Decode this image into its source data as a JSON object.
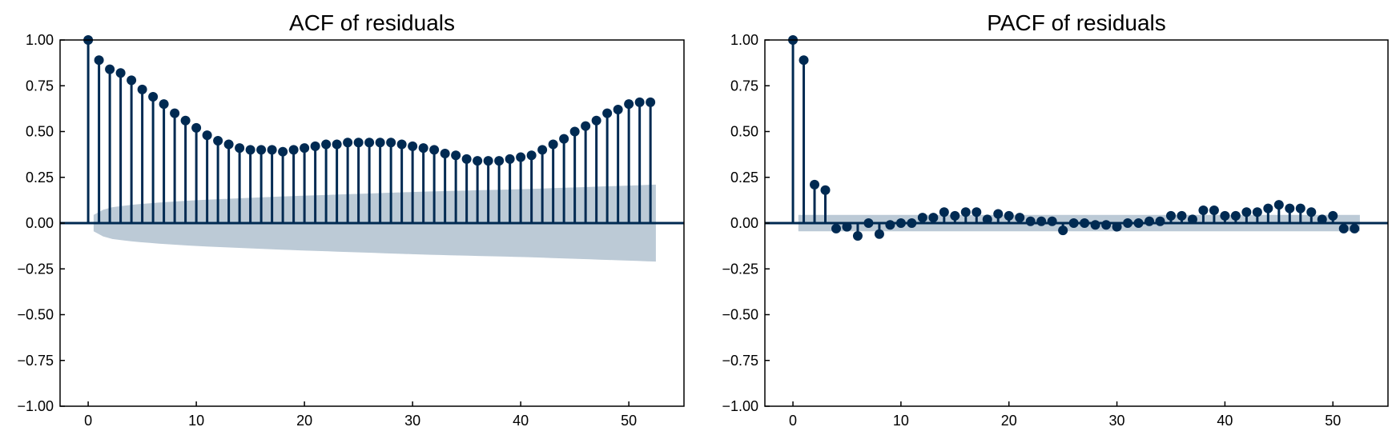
{
  "chart_data": [
    {
      "type": "stem",
      "title": "ACF of residuals",
      "xlim": [
        -2.6,
        55.1
      ],
      "ylim": [
        -1.0,
        1.0
      ],
      "xticks": [
        0,
        10,
        20,
        30,
        40,
        50
      ],
      "yticks": [
        -1.0,
        -0.75,
        -0.5,
        -0.25,
        0.0,
        0.25,
        0.5,
        0.75,
        1.0
      ],
      "ytick_labels": [
        "−1.00",
        "−0.75",
        "−0.50",
        "−0.25",
        "0.00",
        "0.25",
        "0.50",
        "0.75",
        "1.00"
      ],
      "xtick_labels": [
        "0",
        "10",
        "20",
        "30",
        "40",
        "50"
      ],
      "lags": [
        0,
        1,
        2,
        3,
        4,
        5,
        6,
        7,
        8,
        9,
        10,
        11,
        12,
        13,
        14,
        15,
        16,
        17,
        18,
        19,
        20,
        21,
        22,
        23,
        24,
        25,
        26,
        27,
        28,
        29,
        30,
        31,
        32,
        33,
        34,
        35,
        36,
        37,
        38,
        39,
        40,
        41,
        42,
        43,
        44,
        45,
        46,
        47,
        48,
        49,
        50,
        51,
        52
      ],
      "values": [
        1.0,
        0.89,
        0.84,
        0.82,
        0.78,
        0.73,
        0.69,
        0.65,
        0.6,
        0.56,
        0.52,
        0.48,
        0.45,
        0.43,
        0.41,
        0.4,
        0.4,
        0.4,
        0.39,
        0.4,
        0.41,
        0.42,
        0.43,
        0.43,
        0.44,
        0.44,
        0.44,
        0.44,
        0.44,
        0.43,
        0.42,
        0.41,
        0.4,
        0.38,
        0.37,
        0.35,
        0.34,
        0.34,
        0.34,
        0.35,
        0.36,
        0.37,
        0.4,
        0.43,
        0.46,
        0.5,
        0.53,
        0.56,
        0.6,
        0.62,
        0.65,
        0.66,
        0.66
      ],
      "conf_band": {
        "lags": [
          0.5,
          1,
          2,
          4,
          6,
          8,
          10,
          15,
          20,
          25,
          30,
          35,
          40,
          45,
          50,
          52.5
        ],
        "half_width": [
          0.045,
          0.065,
          0.085,
          0.1,
          0.11,
          0.118,
          0.125,
          0.138,
          0.15,
          0.16,
          0.17,
          0.178,
          0.185,
          0.195,
          0.205,
          0.21
        ]
      },
      "colors": {
        "stem": "#002a52",
        "band": "#bccad6",
        "zero_line": "#002a52"
      }
    },
    {
      "type": "stem",
      "title": "PACF of residuals",
      "xlim": [
        -2.6,
        55.1
      ],
      "ylim": [
        -1.0,
        1.0
      ],
      "xticks": [
        0,
        10,
        20,
        30,
        40,
        50
      ],
      "yticks": [
        -1.0,
        -0.75,
        -0.5,
        -0.25,
        0.0,
        0.25,
        0.5,
        0.75,
        1.0
      ],
      "ytick_labels": [
        "−1.00",
        "−0.75",
        "−0.50",
        "−0.25",
        "0.00",
        "0.25",
        "0.50",
        "0.75",
        "1.00"
      ],
      "xtick_labels": [
        "0",
        "10",
        "20",
        "30",
        "40",
        "50"
      ],
      "lags": [
        0,
        1,
        2,
        3,
        4,
        5,
        6,
        7,
        8,
        9,
        10,
        11,
        12,
        13,
        14,
        15,
        16,
        17,
        18,
        19,
        20,
        21,
        22,
        23,
        24,
        25,
        26,
        27,
        28,
        29,
        30,
        31,
        32,
        33,
        34,
        35,
        36,
        37,
        38,
        39,
        40,
        41,
        42,
        43,
        44,
        45,
        46,
        47,
        48,
        49,
        50,
        51,
        52
      ],
      "values": [
        1.0,
        0.89,
        0.21,
        0.18,
        -0.03,
        -0.02,
        -0.07,
        0.0,
        -0.06,
        -0.01,
        0.0,
        0.0,
        0.03,
        0.03,
        0.06,
        0.04,
        0.06,
        0.06,
        0.02,
        0.05,
        0.04,
        0.03,
        0.01,
        0.01,
        0.01,
        -0.04,
        0.0,
        0.0,
        -0.01,
        -0.01,
        -0.02,
        0.0,
        0.0,
        0.01,
        0.01,
        0.04,
        0.04,
        0.02,
        0.07,
        0.07,
        0.04,
        0.04,
        0.06,
        0.06,
        0.08,
        0.1,
        0.08,
        0.08,
        0.06,
        0.02,
        0.04,
        -0.03,
        -0.03
      ],
      "conf_band": {
        "lags": [
          0.5,
          52.5
        ],
        "half_width": [
          0.045,
          0.045
        ]
      },
      "colors": {
        "stem": "#002a52",
        "band": "#bccad6",
        "zero_line": "#002a52"
      }
    }
  ]
}
